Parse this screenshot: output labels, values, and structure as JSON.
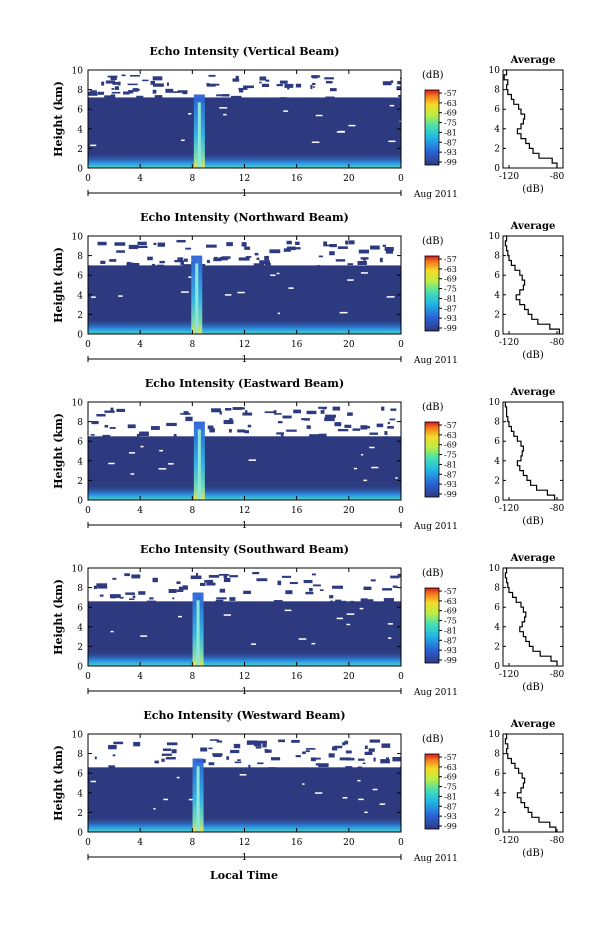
{
  "figure": {
    "xlabel_bottom": "Local Time",
    "date_label": "Aug 2011",
    "day_label": "1",
    "colorbar_unit": "(dB)",
    "colorbar_ticks": [
      "-57",
      "-63",
      "-69",
      "-75",
      "-81",
      "-87",
      "-93",
      "-99"
    ],
    "avg_title": "Average",
    "avg_xlabel": "(dB)",
    "ylabel": "Height (km)"
  },
  "chart_data": [
    {
      "type": "heatmap",
      "title": "Echo Intensity (Vertical Beam)",
      "xlabel": "",
      "ylabel": "Height (km)",
      "xlim": [
        0,
        24
      ],
      "ylim": [
        0,
        10
      ],
      "xticks": [
        "0",
        "4",
        "8",
        "12",
        "16",
        "20",
        "0"
      ],
      "yticks": [
        "0",
        "2",
        "4",
        "6",
        "8",
        "10"
      ],
      "colorbar": {
        "unit": "dB",
        "range": [
          -99,
          -57
        ]
      },
      "cloud_top_km": 7.2,
      "storm_time_h": 8.5,
      "storm_top_km": 7.5,
      "average": {
        "title": "Average",
        "xlabel": "(dB)",
        "xticks": [
          "-120",
          "-80"
        ],
        "xlim": [
          -125,
          -75
        ],
        "height_km": [
          0,
          0.5,
          1,
          1.5,
          2,
          2.5,
          3,
          3.5,
          4,
          4.5,
          5,
          5.5,
          6,
          6.5,
          7,
          7.5,
          8,
          8.5,
          9,
          9.5,
          10
        ],
        "value_db": [
          -80,
          -84,
          -95,
          -100,
          -103,
          -106,
          -110,
          -113,
          -110,
          -108,
          -107,
          -110,
          -112,
          -116,
          -118,
          -121,
          -122,
          -121,
          -124,
          -122,
          -123
        ]
      }
    },
    {
      "type": "heatmap",
      "title": "Echo Intensity (Northward Beam)",
      "xlabel": "",
      "ylabel": "Height (km)",
      "xlim": [
        0,
        24
      ],
      "ylim": [
        0,
        10
      ],
      "xticks": [
        "0",
        "4",
        "8",
        "12",
        "16",
        "20",
        "0"
      ],
      "yticks": [
        "0",
        "2",
        "4",
        "6",
        "8",
        "10"
      ],
      "colorbar": {
        "unit": "dB",
        "range": [
          -99,
          -57
        ]
      },
      "cloud_top_km": 7.0,
      "storm_time_h": 8.3,
      "storm_top_km": 8.0,
      "average": {
        "title": "Average",
        "xlabel": "(dB)",
        "xticks": [
          "-120",
          "-80"
        ],
        "xlim": [
          -125,
          -75
        ],
        "height_km": [
          0,
          0.5,
          1,
          1.5,
          2,
          2.5,
          3,
          3.5,
          4,
          4.5,
          5,
          5.5,
          6,
          6.5,
          7,
          7.5,
          8,
          8.5,
          9,
          9.5,
          10
        ],
        "value_db": [
          -78,
          -86,
          -96,
          -101,
          -104,
          -107,
          -111,
          -114,
          -111,
          -108,
          -107,
          -109,
          -111,
          -115,
          -118,
          -120,
          -121,
          -122,
          -123,
          -122,
          -123
        ]
      }
    },
    {
      "type": "heatmap",
      "title": "Echo Intensity (Eastward Beam)",
      "xlabel": "",
      "ylabel": "Height (km)",
      "xlim": [
        0,
        24
      ],
      "ylim": [
        0,
        10
      ],
      "xticks": [
        "0",
        "4",
        "8",
        "12",
        "16",
        "20",
        "0"
      ],
      "yticks": [
        "0",
        "2",
        "4",
        "6",
        "8",
        "10"
      ],
      "colorbar": {
        "unit": "dB",
        "range": [
          -99,
          -57
        ]
      },
      "cloud_top_km": 6.5,
      "storm_time_h": 8.5,
      "storm_top_km": 8.0,
      "average": {
        "title": "Average",
        "xlabel": "(dB)",
        "xticks": [
          "-120",
          "-80"
        ],
        "xlim": [
          -125,
          -75
        ],
        "height_km": [
          0,
          0.5,
          1,
          1.5,
          2,
          2.5,
          3,
          3.5,
          4,
          4.5,
          5,
          5.5,
          6,
          6.5,
          7,
          7.5,
          8,
          8.5,
          9,
          9.5,
          10
        ],
        "value_db": [
          -82,
          -88,
          -97,
          -102,
          -105,
          -108,
          -111,
          -113,
          -110,
          -109,
          -108,
          -110,
          -113,
          -116,
          -118,
          -120,
          -121,
          -122,
          -122,
          -123,
          -123
        ]
      }
    },
    {
      "type": "heatmap",
      "title": "Echo Intensity (Southward Beam)",
      "xlabel": "",
      "ylabel": "Height (km)",
      "xlim": [
        0,
        24
      ],
      "ylim": [
        0,
        10
      ],
      "xticks": [
        "0",
        "4",
        "8",
        "12",
        "16",
        "20",
        "0"
      ],
      "yticks": [
        "0",
        "2",
        "4",
        "6",
        "8",
        "10"
      ],
      "colorbar": {
        "unit": "dB",
        "range": [
          -99,
          -57
        ]
      },
      "cloud_top_km": 6.6,
      "storm_time_h": 8.4,
      "storm_top_km": 7.5,
      "average": {
        "title": "Average",
        "xlabel": "(dB)",
        "xticks": [
          "-120",
          "-80"
        ],
        "xlim": [
          -125,
          -75
        ],
        "height_km": [
          0,
          0.5,
          1,
          1.5,
          2,
          2.5,
          3,
          3.5,
          4,
          4.5,
          5,
          5.5,
          6,
          6.5,
          7,
          7.5,
          8,
          8.5,
          9,
          9.5,
          10
        ],
        "value_db": [
          -80,
          -85,
          -94,
          -100,
          -103,
          -106,
          -108,
          -111,
          -109,
          -107,
          -106,
          -108,
          -110,
          -114,
          -117,
          -120,
          -121,
          -122,
          -123,
          -122,
          -123
        ]
      }
    },
    {
      "type": "heatmap",
      "title": "Echo Intensity (Westward Beam)",
      "xlabel": "Local Time",
      "ylabel": "Height (km)",
      "xlim": [
        0,
        24
      ],
      "ylim": [
        0,
        10
      ],
      "xticks": [
        "0",
        "4",
        "8",
        "12",
        "16",
        "20",
        "0"
      ],
      "yticks": [
        "0",
        "2",
        "4",
        "6",
        "8",
        "10"
      ],
      "colorbar": {
        "unit": "dB",
        "range": [
          -99,
          -57
        ]
      },
      "cloud_top_km": 6.6,
      "storm_time_h": 8.4,
      "storm_top_km": 7.5,
      "average": {
        "title": "Average",
        "xlabel": "(dB)",
        "xticks": [
          "-120",
          "-80"
        ],
        "xlim": [
          -125,
          -75
        ],
        "height_km": [
          0,
          0.5,
          1,
          1.5,
          2,
          2.5,
          3,
          3.5,
          4,
          4.5,
          5,
          5.5,
          6,
          6.5,
          7,
          7.5,
          8,
          8.5,
          9,
          9.5,
          10
        ],
        "value_db": [
          -81,
          -86,
          -95,
          -101,
          -104,
          -107,
          -110,
          -113,
          -110,
          -108,
          -107,
          -109,
          -112,
          -115,
          -118,
          -121,
          -122,
          -121,
          -123,
          -122,
          -123
        ]
      }
    }
  ]
}
